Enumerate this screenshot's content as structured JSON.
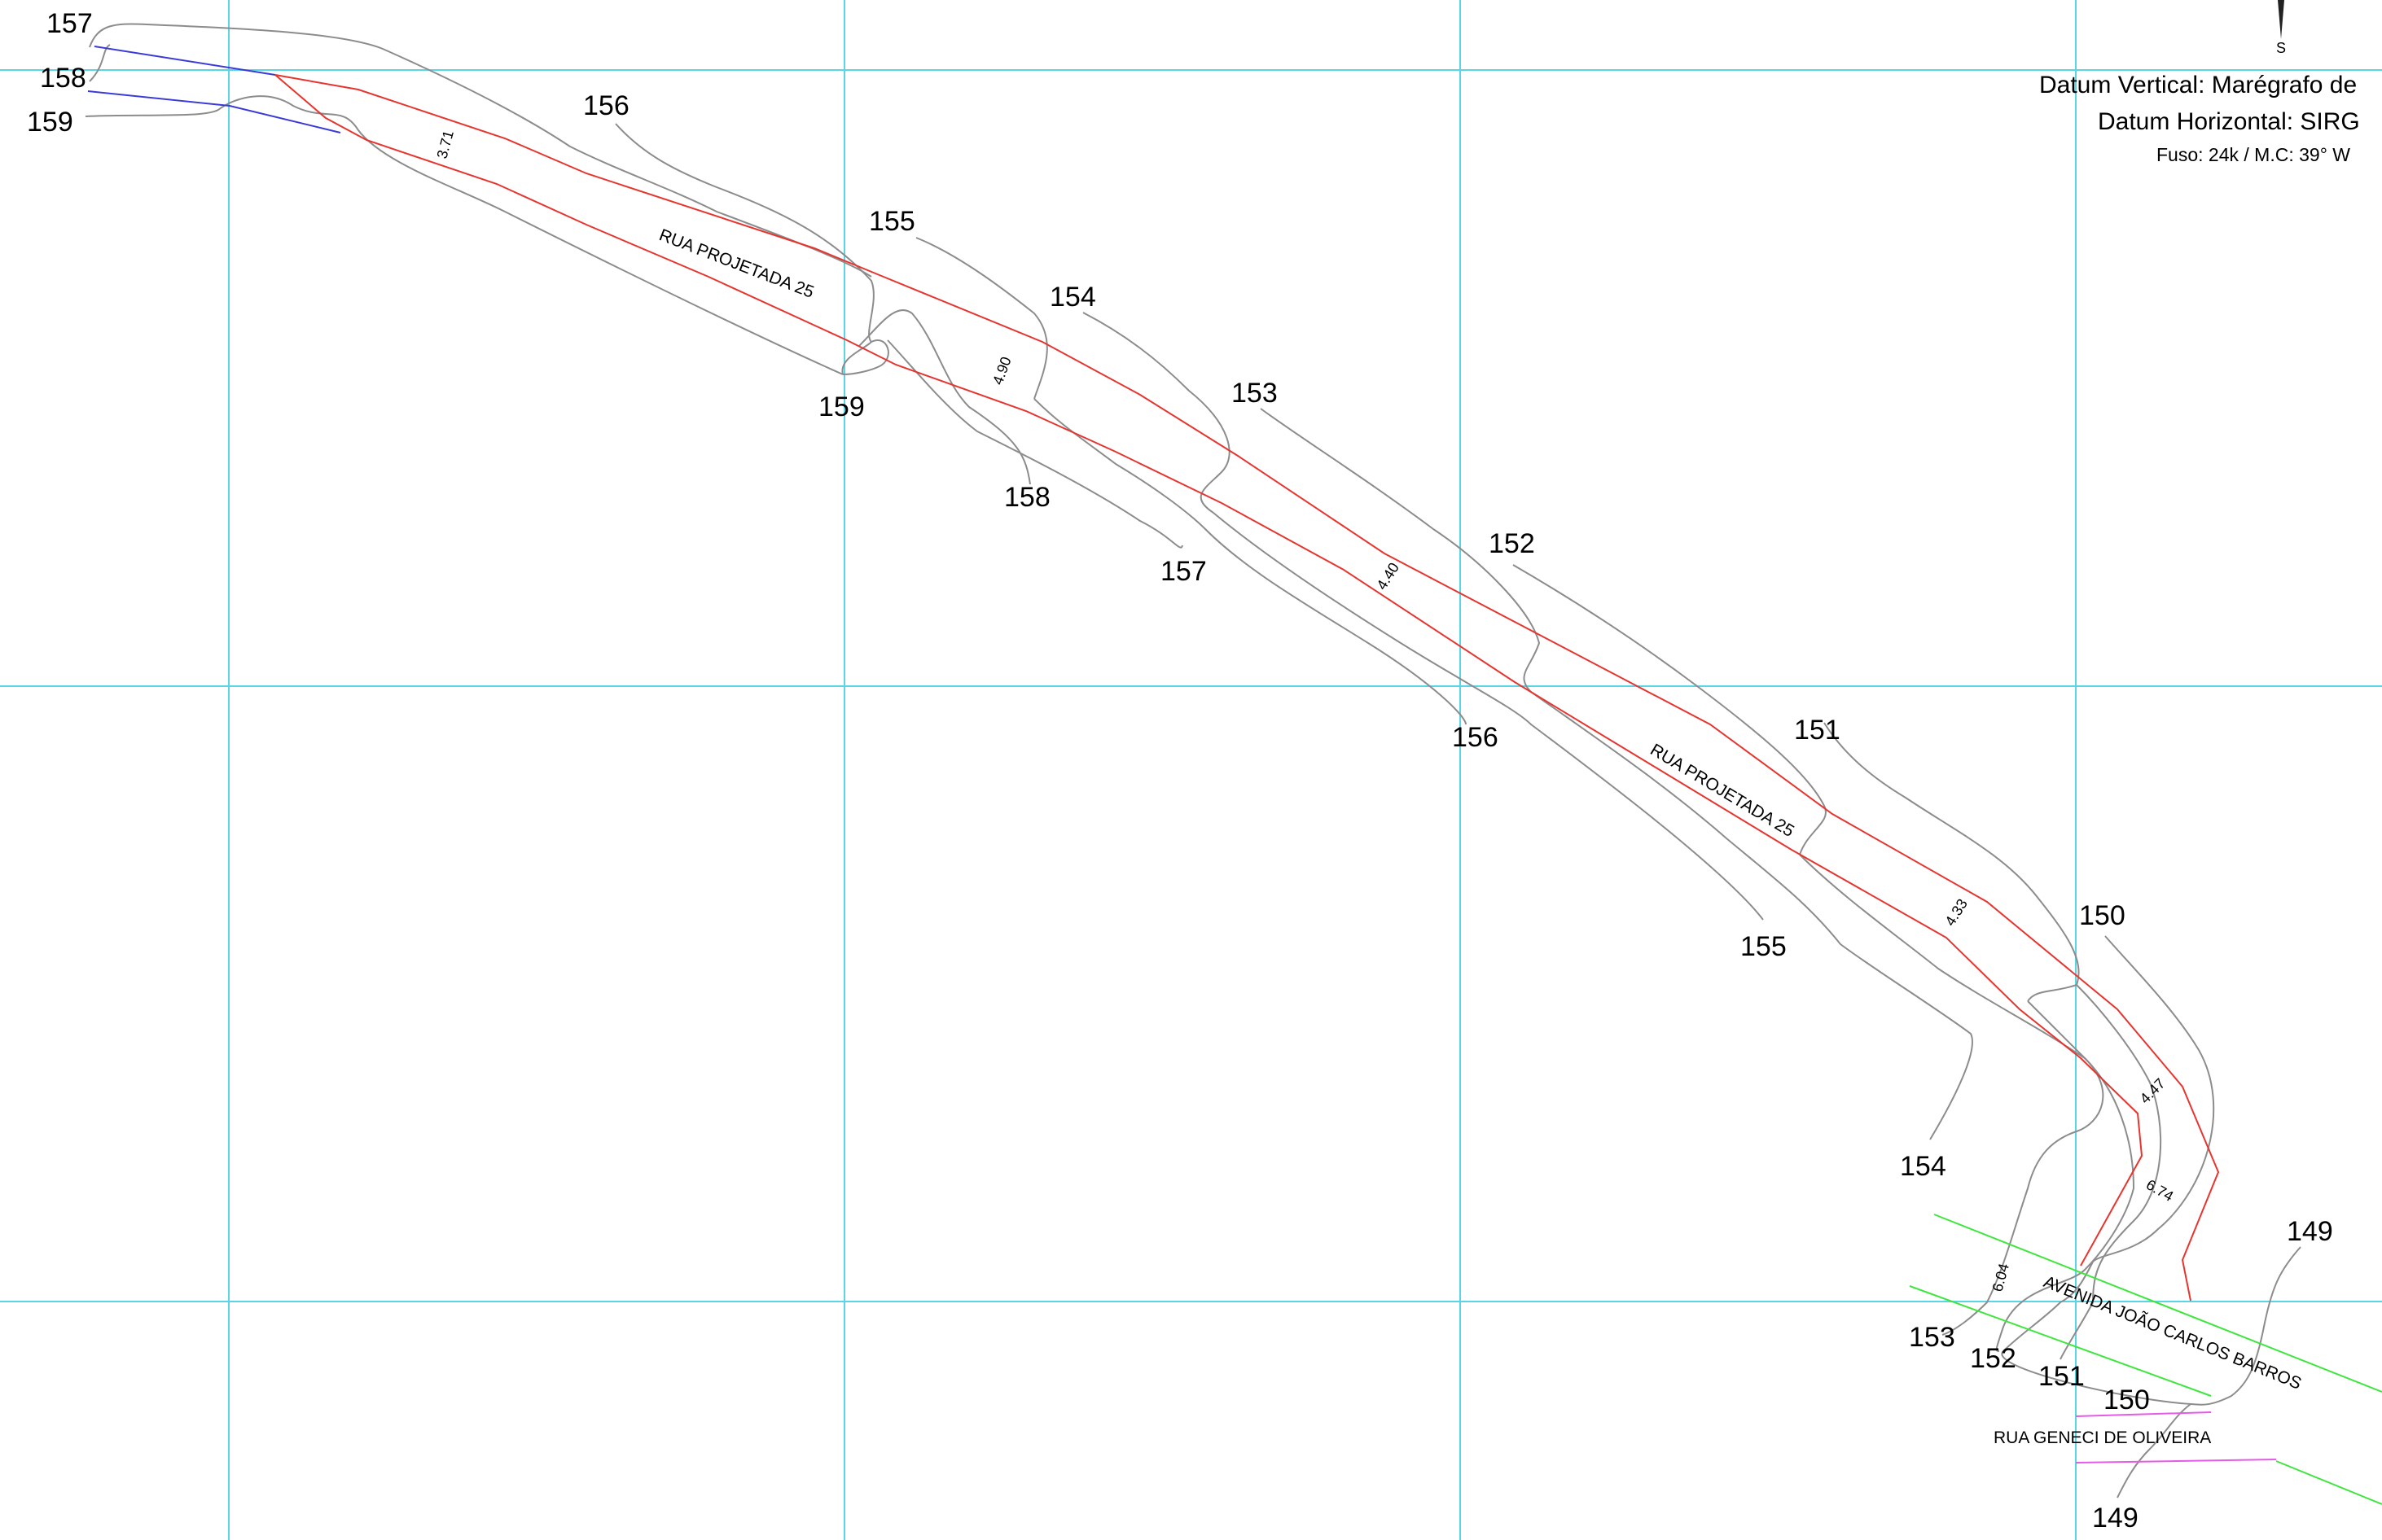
{
  "colors": {
    "grid": "#59d6e6",
    "contour": "#8c8c8c",
    "road_edge": "#e8342e",
    "legacy_line": "#3a3ad8",
    "avenue_edge": "#3ee63e",
    "rua_geneci_edge": "#e65ae6"
  },
  "legend": {
    "datum_vertical": "Datum Vertical: Marégrafo de",
    "datum_horizontal": "Datum Horizontal: SIRG",
    "fuso": "Fuso: 24k  /  M.C: 39° W",
    "north_arrow_label": "S"
  },
  "contour_labels": {
    "top_left_157": "157",
    "top_left_158": "158",
    "top_left_159": "159",
    "n156": "156",
    "n155": "155",
    "n154": "154",
    "n153": "153",
    "n152": "152",
    "n151": "151",
    "n150": "150",
    "n149_right": "149",
    "s159": "159",
    "s158": "158",
    "s157": "157",
    "s156": "156",
    "s155": "155",
    "s154": "154",
    "s153": "153",
    "s152": "152",
    "s151": "151",
    "s150": "150",
    "s149": "149"
  },
  "street_names": {
    "rua_projetada_1": "RUA PROJETADA 25",
    "rua_projetada_2": "RUA PROJETADA 25",
    "avenida": "AVENIDA JOÃO CARLOS BARROS",
    "rua_geneci": "RUA GENECI DE OLIVEIRA"
  },
  "road_widths": {
    "w1": "3.71",
    "w2": "4.90",
    "w3": "4.40",
    "w4": "4.33",
    "w5": "4.47",
    "w6": "6.74",
    "w7": "6.04"
  }
}
